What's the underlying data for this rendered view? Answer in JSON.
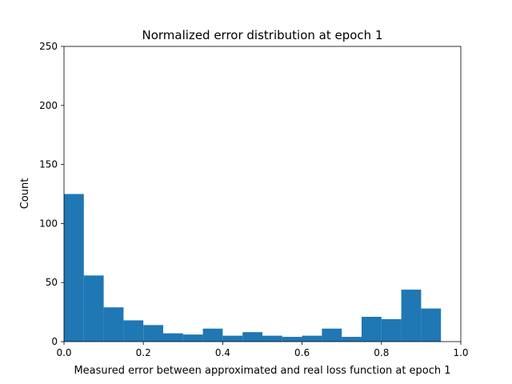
{
  "chart_data": {
    "type": "bar",
    "title": "Normalized error distribution at epoch 1",
    "xlabel": "Measured error between approximated and real loss function at epoch 1",
    "ylabel": "Count",
    "xlim": [
      0,
      1
    ],
    "ylim": [
      0,
      250
    ],
    "xticks": [
      "0.0",
      "0.2",
      "0.4",
      "0.6",
      "0.8",
      "1.0"
    ],
    "yticks": [
      "0",
      "50",
      "100",
      "150",
      "200",
      "250"
    ],
    "grid": false,
    "bin_width": 0.05,
    "bin_starts": [
      0,
      0.05,
      0.1,
      0.15,
      0.2,
      0.25,
      0.3,
      0.35,
      0.4,
      0.45,
      0.5,
      0.55,
      0.6,
      0.65,
      0.7,
      0.75,
      0.8,
      0.85,
      0.9
    ],
    "values": [
      125,
      56,
      29,
      18,
      14,
      7,
      6,
      11,
      5,
      8,
      5,
      4,
      5,
      11,
      4,
      21,
      19,
      44,
      28
    ],
    "bar_color": "#1f77b4"
  }
}
